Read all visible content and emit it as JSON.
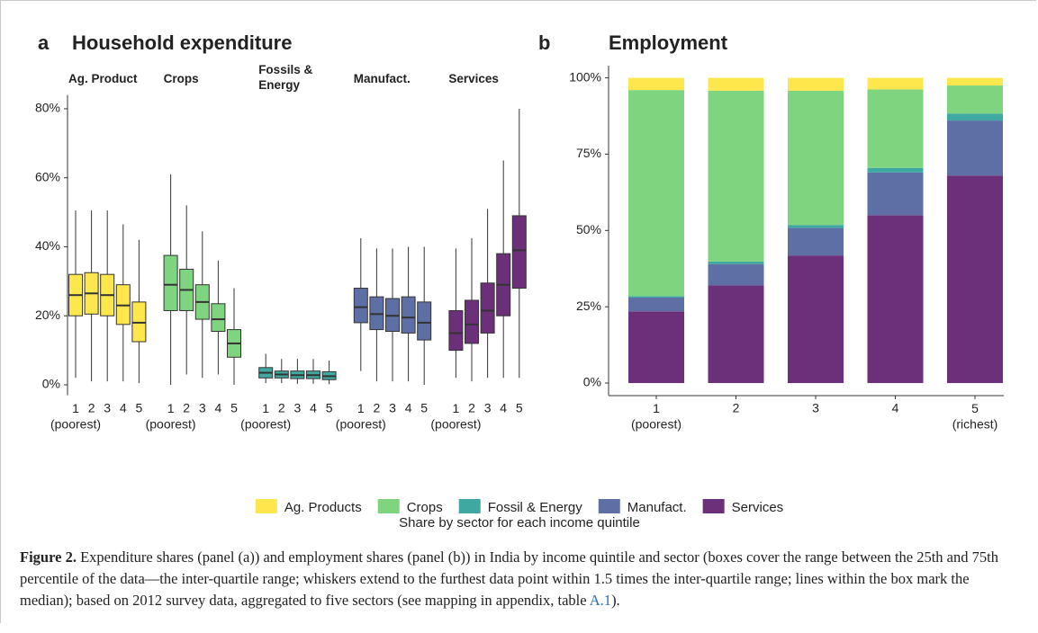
{
  "chart_data": [
    {
      "type": "box",
      "panel": "a",
      "title": "Household expenditure",
      "ylim": [
        -3,
        84
      ],
      "yticks": [
        {
          "value": 0,
          "label": "0%"
        },
        {
          "value": 20,
          "label": "20%"
        },
        {
          "value": 40,
          "label": "40%"
        },
        {
          "value": 60,
          "label": "60%"
        },
        {
          "value": 80,
          "label": "80%"
        }
      ],
      "facets": [
        {
          "name": "Ag. Product",
          "color": "#fde74c",
          "categories": [
            "1\n(poorest)",
            "2",
            "3",
            "4",
            "5"
          ],
          "whislo": [
            2,
            1,
            1,
            1,
            0.5
          ],
          "q1": [
            20,
            20.5,
            20,
            17.5,
            12.5
          ],
          "median": [
            26,
            26.5,
            26,
            23,
            18
          ],
          "q3": [
            32,
            32.5,
            32,
            29,
            24
          ],
          "whishi": [
            50.5,
            50.5,
            50.5,
            46.5,
            42
          ]
        },
        {
          "name": "Crops",
          "color": "#7fd47f",
          "categories": [
            "1\n(poorest)",
            "2",
            "3",
            "4",
            "5"
          ],
          "whislo": [
            0,
            3,
            2,
            3,
            0
          ],
          "q1": [
            21.5,
            21.5,
            19,
            15.5,
            8
          ],
          "median": [
            29,
            27.5,
            24,
            19,
            12
          ],
          "q3": [
            37.5,
            33.5,
            29,
            23.5,
            16
          ],
          "whishi": [
            61,
            52,
            44.5,
            36,
            28
          ]
        },
        {
          "name": "Fossils &\nEnergy",
          "color": "#3fa8a0",
          "categories": [
            "1\n(poorest)",
            "2",
            "3",
            "4",
            "5"
          ],
          "whislo": [
            0.5,
            0.5,
            0.3,
            0.3,
            0.2
          ],
          "q1": [
            2,
            2,
            1.8,
            1.8,
            1.5
          ],
          "median": [
            3.5,
            3,
            2.8,
            2.8,
            2.5
          ],
          "q3": [
            5,
            4,
            4,
            4,
            3.8
          ],
          "whishi": [
            9,
            7.5,
            7.5,
            7.5,
            7
          ]
        },
        {
          "name": "Manufact.",
          "color": "#5d6fa5",
          "categories": [
            "1\n(poorest)",
            "2",
            "3",
            "4",
            "5"
          ],
          "whislo": [
            4,
            1,
            1,
            1,
            0
          ],
          "q1": [
            18,
            16,
            15.5,
            15,
            13
          ],
          "median": [
            22.5,
            20.5,
            20,
            19.5,
            18
          ],
          "q3": [
            28,
            25.5,
            25,
            25.5,
            24
          ],
          "whishi": [
            42.5,
            39.5,
            39.5,
            40,
            40
          ]
        },
        {
          "name": "Services",
          "color": "#6b3079",
          "categories": [
            "1\n(poorest)",
            "2",
            "3",
            "4",
            "5"
          ],
          "whislo": [
            2,
            1,
            2,
            2,
            2
          ],
          "q1": [
            10,
            12,
            15,
            20,
            28
          ],
          "median": [
            15,
            17.5,
            21.5,
            29,
            39
          ],
          "q3": [
            21.5,
            24.5,
            29.5,
            38,
            49
          ],
          "whishi": [
            39.5,
            42.5,
            51,
            65,
            80
          ]
        }
      ]
    },
    {
      "type": "stacked_bar",
      "panel": "b",
      "title": "Employment",
      "ylim": [
        -4,
        104
      ],
      "yticks": [
        {
          "value": 0,
          "label": "0%"
        },
        {
          "value": 25,
          "label": "25%"
        },
        {
          "value": 50,
          "label": "50%"
        },
        {
          "value": 75,
          "label": "75%"
        },
        {
          "value": 100,
          "label": "100%"
        }
      ],
      "categories": [
        "1\n(poorest)",
        "2",
        "3",
        "4",
        "5\n(richest)"
      ],
      "xlabel": "Share by sector for each income quintile",
      "series": [
        {
          "name": "Ag. Products",
          "color": "#fde74c",
          "values": [
            4,
            4.2,
            4.2,
            3.8,
            2.5
          ]
        },
        {
          "name": "Crops",
          "color": "#7fd47f",
          "values": [
            67.5,
            56,
            44,
            25.7,
            9.2
          ]
        },
        {
          "name": "Fossil & Energy",
          "color": "#3fa8a0",
          "values": [
            0.5,
            0.8,
            1,
            1.5,
            2.3
          ]
        },
        {
          "name": "Manufact.",
          "color": "#5d6fa5",
          "values": [
            4.5,
            7,
            9,
            14,
            18
          ]
        },
        {
          "name": "Services",
          "color": "#6b3079",
          "values": [
            23.5,
            32,
            41.8,
            55,
            68
          ]
        }
      ]
    }
  ],
  "caption": {
    "label": "Figure 2.",
    "text": "Expenditure shares (panel (a)) and employment shares (panel (b)) in India by income quintile and sector (boxes cover the range between the 25th and 75th percentile of the data—the inter-quartile range; whiskers extend to the furthest data point within 1.5 times the inter-quartile range; lines within the box mark the median); based on 2012 survey data, aggregated to five sectors (see mapping in appendix, table ",
    "link": "A.1",
    "end": ")."
  }
}
